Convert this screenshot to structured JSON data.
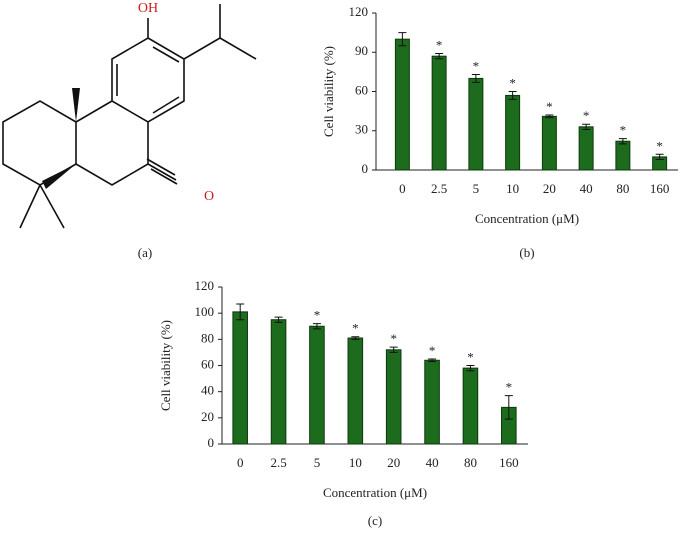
{
  "structure": {
    "labels": [
      "OH",
      "O"
    ],
    "caption": "(a)"
  },
  "chart_data": [
    {
      "type": "bar",
      "caption": "(b)",
      "y_label": "Cell viability (%)",
      "x_label": "Concentration (μM)",
      "categories": [
        "0",
        "2.5",
        "5",
        "10",
        "20",
        "40",
        "80",
        "160"
      ],
      "values": [
        100,
        87,
        70,
        57,
        41,
        33,
        22,
        10
      ],
      "errors": [
        5,
        2,
        3,
        3,
        1,
        2,
        2,
        2
      ],
      "annotations": [
        null,
        "*",
        "*",
        "*",
        "*",
        "*",
        "*",
        "*"
      ],
      "color": "#1d6b1d",
      "ylim": [
        0,
        120
      ],
      "yticks": [
        0,
        30,
        60,
        90,
        120
      ]
    },
    {
      "type": "bar",
      "caption": "(c)",
      "y_label": "Cell viability (%)",
      "x_label": "Concentration (μM)",
      "categories": [
        "0",
        "2.5",
        "5",
        "10",
        "20",
        "40",
        "80",
        "160"
      ],
      "values": [
        101,
        95,
        90,
        81,
        72,
        64,
        58,
        28
      ],
      "errors": [
        6,
        2,
        2,
        1,
        2,
        1,
        2,
        9
      ],
      "annotations": [
        null,
        null,
        "*",
        "*",
        "*",
        "*",
        "*",
        "*"
      ],
      "color": "#1d6b1d",
      "ylim": [
        0,
        120
      ],
      "yticks": [
        0,
        20,
        40,
        60,
        80,
        100,
        120
      ]
    }
  ]
}
